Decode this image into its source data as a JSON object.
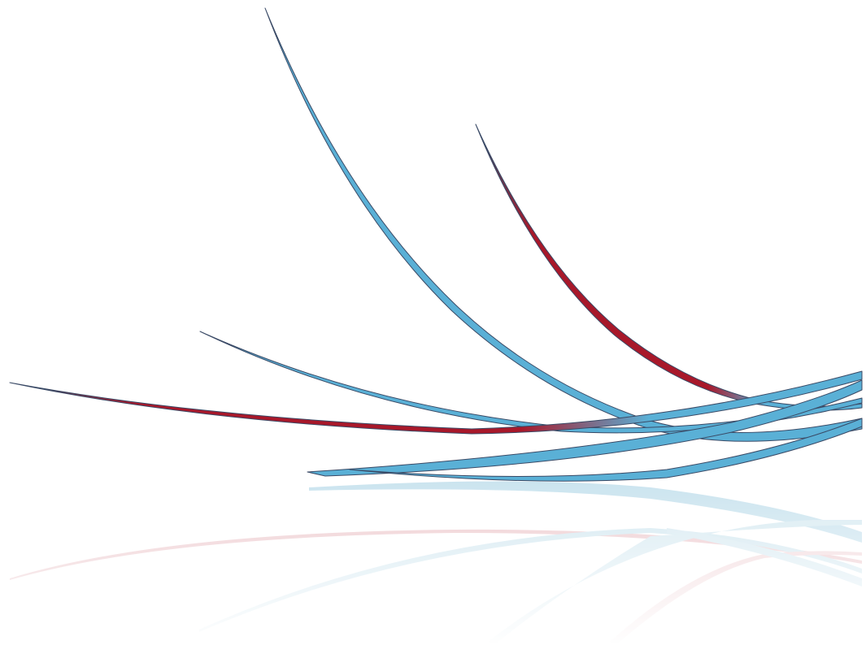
{
  "scene": {
    "background": "#ffffff",
    "colors": {
      "blue": "#5ab0d6",
      "red": "#a8182a",
      "edge": "#3a4a66",
      "reflection_blue": "#b8d8e6",
      "reflection_red": "#e0a8ae"
    },
    "ribbons": [
      {
        "id": "ribbon-1",
        "color": "blue"
      },
      {
        "id": "ribbon-2",
        "color": "red"
      },
      {
        "id": "ribbon-3",
        "color": "blue"
      },
      {
        "id": "ribbon-4",
        "color": "red"
      },
      {
        "id": "ribbon-5",
        "color": "blue"
      },
      {
        "id": "ribbon-6",
        "color": "blue"
      }
    ]
  }
}
